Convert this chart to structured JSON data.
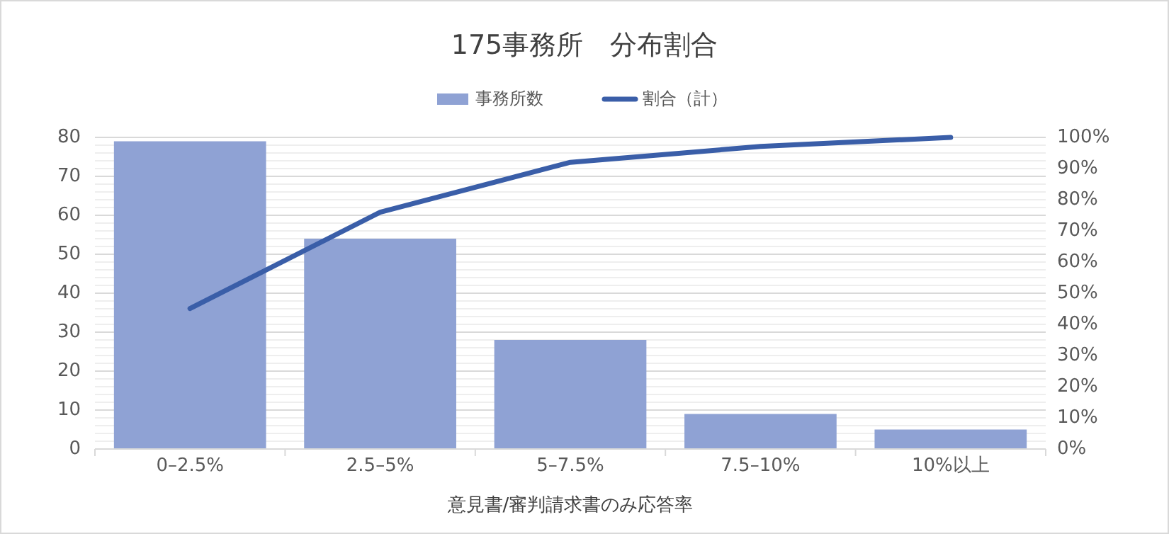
{
  "chart_data": {
    "type": "bar",
    "title": "175事務所　分布割合",
    "xlabel": "意見書/審判請求書のみ応答率",
    "categories": [
      "0–2.5%",
      "2.5–5%",
      "5–7.5%",
      "7.5–10%",
      "10%以上"
    ],
    "series": [
      {
        "name": "事務所数",
        "color": "#8fa2d4",
        "values": [
          79,
          54,
          28,
          9,
          5
        ]
      },
      {
        "name": "割合（計）",
        "type": "line",
        "axis": "y2",
        "color": "#3a5ea8",
        "values": [
          45.1,
          76.0,
          92.0,
          97.1,
          100
        ]
      }
    ],
    "ylim": [
      0,
      80
    ],
    "yticks": [
      0,
      10,
      20,
      30,
      40,
      50,
      60,
      70,
      80
    ],
    "y2lim": [
      0,
      100
    ],
    "y2ticks": [
      {
        "value": 0,
        "label": "0%"
      },
      {
        "value": 10,
        "label": "10%"
      },
      {
        "value": 20,
        "label": "20%"
      },
      {
        "value": 30,
        "label": "30%"
      },
      {
        "value": 40,
        "label": "40%"
      },
      {
        "value": 50,
        "label": "50%"
      },
      {
        "value": 60,
        "label": "60%"
      },
      {
        "value": 70,
        "label": "70%"
      },
      {
        "value": 80,
        "label": "80%"
      },
      {
        "value": 90,
        "label": "90%"
      },
      {
        "value": 100,
        "label": "100%"
      }
    ],
    "grid": "y",
    "legend": "top",
    "marker": "none",
    "line_style": "solid"
  }
}
